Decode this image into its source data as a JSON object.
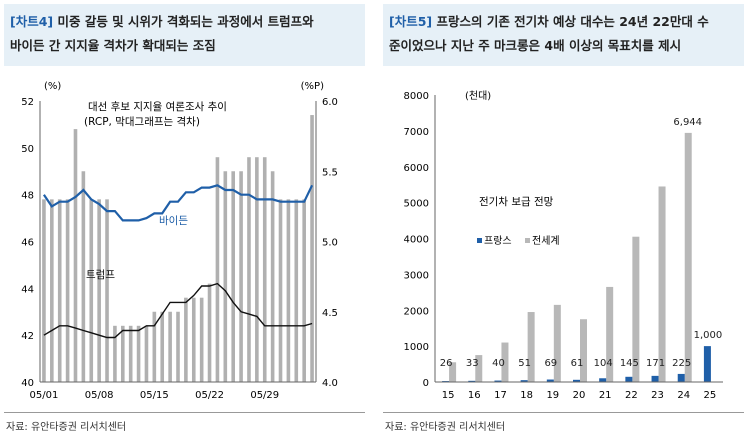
{
  "left": {
    "title_tag": "[차트4]",
    "title_line1": " 미중 갈등 및 시위가 격화되는 과정에서 트럼프와",
    "title_line2": "바이든 간 지지율 격차가 확대되는 조짐",
    "source": "자료: 유안타증권 리서치센터"
  },
  "right": {
    "title_tag": "[차트5]",
    "title_line1": " 프랑스의 기존 전기차 예상 대수는 24년 22만대 수",
    "title_line2": "준이었으나 지난 주 마크롱은 4배 이상의 목표치를 제시",
    "source": "자료: 유안타증권 리서치센터"
  },
  "chart_data": [
    {
      "type": "bar",
      "title": "대선 후보 지지율 여론조사 추이",
      "subtitle": "(RCP, 막대그래프는 격차)",
      "ylabel_left": "(%)",
      "ylabel_right": "(%P)",
      "ylim_left": [
        40,
        52
      ],
      "ylim_right": [
        4.0,
        6.0
      ],
      "yticks_left": [
        "52",
        "50",
        "48",
        "46",
        "44",
        "42",
        "40"
      ],
      "yticks_right": [
        "6.0",
        "5.5",
        "5.0",
        "4.5",
        "4.0"
      ],
      "xticks": [
        "05/01",
        "05/08",
        "05/15",
        "05/22",
        "05/29"
      ],
      "series": [
        {
          "name": "바이든",
          "color": "#1f5fa8",
          "values": [
            48.0,
            47.5,
            47.7,
            47.7,
            47.9,
            48.2,
            47.8,
            47.6,
            47.3,
            47.3,
            46.9,
            46.9,
            46.9,
            47.0,
            47.2,
            47.2,
            47.7,
            47.7,
            48.1,
            48.1,
            48.3,
            48.3,
            48.4,
            48.2,
            48.2,
            48.0,
            48.0,
            47.8,
            47.8,
            47.8,
            47.7,
            47.7,
            47.7,
            47.7,
            48.4
          ]
        },
        {
          "name": "트럼프",
          "color": "#111111",
          "values": [
            42.0,
            42.2,
            42.4,
            42.4,
            42.3,
            42.2,
            42.1,
            42.0,
            41.9,
            41.9,
            42.2,
            42.2,
            42.2,
            42.4,
            42.4,
            42.9,
            43.4,
            43.4,
            43.4,
            43.7,
            44.1,
            44.1,
            44.2,
            43.9,
            43.4,
            43.0,
            42.9,
            42.8,
            42.4,
            42.4,
            42.4,
            42.4,
            42.4,
            42.4,
            42.5
          ]
        },
        {
          "name": "격차",
          "color": "#b0b0b0",
          "values": [
            5.3,
            5.3,
            5.3,
            5.3,
            5.8,
            5.5,
            5.3,
            5.3,
            5.3,
            4.4,
            4.4,
            4.4,
            4.4,
            4.4,
            4.5,
            4.5,
            4.5,
            4.5,
            4.6,
            4.6,
            4.6,
            4.7,
            5.6,
            5.5,
            5.5,
            5.5,
            5.6,
            5.6,
            5.6,
            5.5,
            5.3,
            5.3,
            5.3,
            5.3,
            5.9
          ]
        }
      ]
    },
    {
      "type": "bar",
      "title": "전기차 보급 전망",
      "ylabel": "(천대)",
      "ylim": [
        0,
        8000
      ],
      "yticks": [
        "8000",
        "7000",
        "6000",
        "5000",
        "4000",
        "3000",
        "2000",
        "1000",
        "0"
      ],
      "categories": [
        "15",
        "16",
        "17",
        "18",
        "19",
        "20",
        "21",
        "22",
        "23",
        "24",
        "25"
      ],
      "series": [
        {
          "name": "프랑스",
          "color": "#1f5fa8",
          "values": [
            26,
            33,
            40,
            51,
            69,
            61,
            104,
            145,
            171,
            225,
            1000
          ],
          "labels": [
            "26",
            "33",
            "40",
            "51",
            "69",
            "61",
            "104",
            "145",
            "171",
            "225",
            "1,000"
          ]
        },
        {
          "name": "전세계",
          "color": "#b8b8b8",
          "values": [
            550,
            750,
            1100,
            1950,
            2150,
            1750,
            2650,
            4050,
            5450,
            6944,
            null
          ],
          "labels": [
            "",
            "",
            "",
            "",
            "",
            "",
            "",
            "",
            "",
            "6,944",
            ""
          ]
        }
      ]
    }
  ]
}
